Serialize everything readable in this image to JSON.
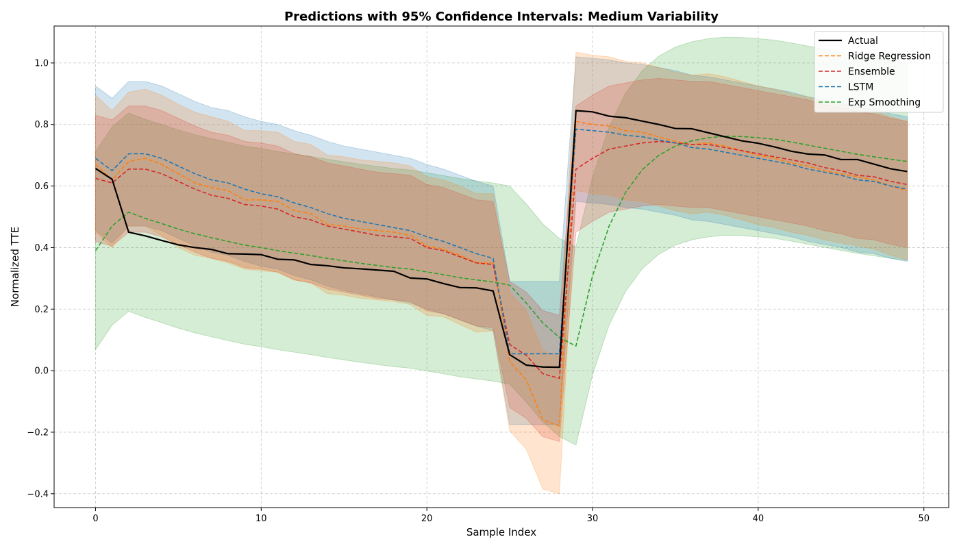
{
  "chart_data": {
    "type": "line",
    "title": "Predictions with 95% Confidence Intervals: Medium Variability",
    "xlabel": "Sample Index",
    "ylabel": "Normalized TTE",
    "xlim": [
      -2.5,
      51.5
    ],
    "ylim": [
      -0.445,
      1.12
    ],
    "x_ticks": [
      0,
      10,
      20,
      30,
      40,
      50
    ],
    "x_tick_labels": [
      "0",
      "10",
      "20",
      "30",
      "40",
      "50"
    ],
    "y_ticks": [
      -0.4,
      -0.2,
      0.0,
      0.2,
      0.4,
      0.6,
      0.8,
      1.0
    ],
    "y_tick_labels": [
      "−0.4",
      "−0.2",
      "0.0",
      "0.2",
      "0.4",
      "0.6",
      "0.8",
      "1.0"
    ],
    "grid": true,
    "legend_position": "top-right",
    "x": [
      0,
      1,
      2,
      3,
      4,
      5,
      6,
      7,
      8,
      9,
      10,
      11,
      12,
      13,
      14,
      15,
      16,
      17,
      18,
      19,
      20,
      21,
      22,
      23,
      24,
      25,
      26,
      27,
      28,
      29,
      30,
      31,
      32,
      33,
      34,
      35,
      36,
      37,
      38,
      39,
      40,
      41,
      42,
      43,
      44,
      45,
      46,
      47,
      48,
      49
    ],
    "series": [
      {
        "name": "Actual",
        "color": "#000000",
        "style": "solid",
        "values": [
          0.657,
          0.622,
          0.45,
          0.438,
          0.423,
          0.409,
          0.4,
          0.394,
          0.38,
          0.379,
          0.377,
          0.362,
          0.36,
          0.345,
          0.341,
          0.334,
          0.331,
          0.327,
          0.323,
          0.301,
          0.298,
          0.283,
          0.27,
          0.269,
          0.259,
          0.052,
          0.018,
          0.012,
          0.011,
          0.845,
          0.841,
          0.827,
          0.822,
          0.811,
          0.8,
          0.787,
          0.786,
          0.773,
          0.76,
          0.747,
          0.739,
          0.727,
          0.713,
          0.704,
          0.701,
          0.686,
          0.686,
          0.671,
          0.656,
          0.647
        ],
        "band": null
      },
      {
        "name": "Ridge Regression",
        "color": "#ff7f0e",
        "style": "dashed",
        "values": [
          0.67,
          0.62,
          0.68,
          0.69,
          0.67,
          0.64,
          0.61,
          0.595,
          0.585,
          0.555,
          0.555,
          0.55,
          0.52,
          0.51,
          0.475,
          0.47,
          0.46,
          0.455,
          0.45,
          0.44,
          0.405,
          0.395,
          0.375,
          0.35,
          0.35,
          0.03,
          -0.03,
          -0.16,
          -0.18,
          0.81,
          0.8,
          0.795,
          0.78,
          0.775,
          0.76,
          0.745,
          0.735,
          0.74,
          0.73,
          0.715,
          0.7,
          0.69,
          0.675,
          0.665,
          0.65,
          0.64,
          0.63,
          0.62,
          0.6,
          0.585
        ],
        "band": {
          "lower": [
            0.45,
            0.4,
            0.47,
            0.47,
            0.44,
            0.4,
            0.375,
            0.365,
            0.35,
            0.33,
            0.325,
            0.32,
            0.295,
            0.285,
            0.25,
            0.245,
            0.235,
            0.23,
            0.225,
            0.215,
            0.18,
            0.175,
            0.15,
            0.125,
            0.13,
            -0.195,
            -0.255,
            -0.385,
            -0.4,
            0.585,
            0.575,
            0.57,
            0.555,
            0.55,
            0.535,
            0.52,
            0.51,
            0.515,
            0.505,
            0.49,
            0.475,
            0.465,
            0.45,
            0.44,
            0.425,
            0.415,
            0.405,
            0.395,
            0.375,
            0.36
          ],
          "upper": [
            0.895,
            0.845,
            0.905,
            0.915,
            0.895,
            0.865,
            0.84,
            0.825,
            0.81,
            0.78,
            0.78,
            0.775,
            0.745,
            0.735,
            0.7,
            0.695,
            0.685,
            0.68,
            0.675,
            0.665,
            0.63,
            0.62,
            0.6,
            0.575,
            0.575,
            0.255,
            0.195,
            0.065,
            0.045,
            1.035,
            1.025,
            1.02,
            1.005,
            1.0,
            0.985,
            0.97,
            0.96,
            0.965,
            0.955,
            0.94,
            0.925,
            0.915,
            0.9,
            0.89,
            0.875,
            0.865,
            0.855,
            0.845,
            0.825,
            0.81
          ]
        }
      },
      {
        "name": "Ensemble",
        "color": "#d62728",
        "style": "dashed",
        "values": [
          0.625,
          0.61,
          0.655,
          0.655,
          0.64,
          0.615,
          0.59,
          0.57,
          0.56,
          0.54,
          0.535,
          0.525,
          0.5,
          0.49,
          0.47,
          0.46,
          0.45,
          0.44,
          0.435,
          0.43,
          0.4,
          0.39,
          0.37,
          0.35,
          0.345,
          0.085,
          0.05,
          -0.01,
          -0.025,
          0.655,
          0.69,
          0.72,
          0.73,
          0.74,
          0.745,
          0.74,
          0.735,
          0.735,
          0.725,
          0.715,
          0.705,
          0.695,
          0.685,
          0.675,
          0.66,
          0.65,
          0.635,
          0.63,
          0.615,
          0.605
        ],
        "band": {
          "lower": [
            0.42,
            0.405,
            0.45,
            0.45,
            0.435,
            0.41,
            0.385,
            0.365,
            0.355,
            0.335,
            0.33,
            0.32,
            0.295,
            0.285,
            0.265,
            0.255,
            0.245,
            0.235,
            0.23,
            0.225,
            0.195,
            0.185,
            0.165,
            0.145,
            0.14,
            -0.12,
            -0.155,
            -0.215,
            -0.23,
            0.45,
            0.485,
            0.515,
            0.525,
            0.535,
            0.54,
            0.535,
            0.53,
            0.53,
            0.52,
            0.51,
            0.5,
            0.49,
            0.48,
            0.47,
            0.455,
            0.445,
            0.43,
            0.425,
            0.41,
            0.4
          ],
          "upper": [
            0.83,
            0.815,
            0.86,
            0.86,
            0.845,
            0.82,
            0.795,
            0.775,
            0.765,
            0.745,
            0.74,
            0.73,
            0.705,
            0.695,
            0.675,
            0.665,
            0.655,
            0.645,
            0.64,
            0.635,
            0.605,
            0.595,
            0.575,
            0.555,
            0.55,
            0.29,
            0.255,
            0.195,
            0.18,
            0.86,
            0.895,
            0.925,
            0.935,
            0.945,
            0.95,
            0.945,
            0.94,
            0.94,
            0.93,
            0.92,
            0.91,
            0.9,
            0.89,
            0.88,
            0.865,
            0.855,
            0.84,
            0.835,
            0.82,
            0.81
          ]
        }
      },
      {
        "name": "LSTM",
        "color": "#1f77b4",
        "style": "dashed",
        "values": [
          0.69,
          0.65,
          0.705,
          0.705,
          0.69,
          0.665,
          0.64,
          0.62,
          0.61,
          0.59,
          0.575,
          0.565,
          0.545,
          0.53,
          0.51,
          0.495,
          0.485,
          0.475,
          0.465,
          0.455,
          0.435,
          0.42,
          0.4,
          0.38,
          0.365,
          0.055,
          0.055,
          0.055,
          0.055,
          0.785,
          0.78,
          0.775,
          0.765,
          0.76,
          0.75,
          0.74,
          0.725,
          0.72,
          0.71,
          0.7,
          0.69,
          0.68,
          0.67,
          0.655,
          0.645,
          0.635,
          0.62,
          0.615,
          0.6,
          0.59
        ],
        "band": {
          "lower": [
            0.455,
            0.415,
            0.47,
            0.47,
            0.455,
            0.43,
            0.405,
            0.385,
            0.375,
            0.355,
            0.34,
            0.33,
            0.31,
            0.295,
            0.275,
            0.26,
            0.25,
            0.24,
            0.23,
            0.22,
            0.2,
            0.185,
            0.165,
            0.145,
            0.13,
            -0.175,
            -0.175,
            -0.175,
            -0.175,
            0.55,
            0.545,
            0.54,
            0.53,
            0.525,
            0.515,
            0.505,
            0.49,
            0.485,
            0.475,
            0.465,
            0.455,
            0.445,
            0.435,
            0.42,
            0.41,
            0.4,
            0.385,
            0.38,
            0.365,
            0.355
          ],
          "upper": [
            0.925,
            0.885,
            0.94,
            0.94,
            0.925,
            0.9,
            0.875,
            0.855,
            0.845,
            0.825,
            0.81,
            0.8,
            0.78,
            0.765,
            0.745,
            0.73,
            0.72,
            0.71,
            0.7,
            0.69,
            0.67,
            0.655,
            0.635,
            0.615,
            0.6,
            0.29,
            0.29,
            0.29,
            0.29,
            1.02,
            1.015,
            1.01,
            1.0,
            0.995,
            0.985,
            0.975,
            0.96,
            0.955,
            0.945,
            0.935,
            0.925,
            0.915,
            0.905,
            0.89,
            0.88,
            0.87,
            0.855,
            0.85,
            0.835,
            0.825
          ]
        }
      },
      {
        "name": "Exp Smoothing",
        "color": "#2ca02c",
        "style": "dashed",
        "values": [
          0.39,
          0.47,
          0.515,
          0.495,
          0.478,
          0.46,
          0.445,
          0.432,
          0.42,
          0.408,
          0.4,
          0.39,
          0.382,
          0.374,
          0.365,
          0.357,
          0.349,
          0.342,
          0.335,
          0.33,
          0.321,
          0.312,
          0.302,
          0.295,
          0.288,
          0.278,
          0.22,
          0.155,
          0.108,
          0.08,
          0.308,
          0.47,
          0.58,
          0.653,
          0.7,
          0.73,
          0.747,
          0.757,
          0.762,
          0.761,
          0.757,
          0.752,
          0.743,
          0.733,
          0.723,
          0.713,
          0.703,
          0.695,
          0.687,
          0.68
        ],
        "band": {
          "lower": [
            0.068,
            0.148,
            0.193,
            0.173,
            0.156,
            0.138,
            0.123,
            0.11,
            0.098,
            0.086,
            0.078,
            0.068,
            0.06,
            0.052,
            0.043,
            0.035,
            0.027,
            0.02,
            0.013,
            0.008,
            -0.001,
            -0.01,
            -0.02,
            -0.027,
            -0.034,
            -0.044,
            -0.102,
            -0.167,
            -0.214,
            -0.242,
            -0.014,
            0.148,
            0.258,
            0.331,
            0.378,
            0.408,
            0.425,
            0.435,
            0.44,
            0.439,
            0.435,
            0.43,
            0.421,
            0.411,
            0.401,
            0.391,
            0.381,
            0.373,
            0.365,
            0.358
          ],
          "upper": [
            0.712,
            0.792,
            0.837,
            0.817,
            0.8,
            0.782,
            0.767,
            0.754,
            0.742,
            0.73,
            0.722,
            0.712,
            0.704,
            0.696,
            0.687,
            0.679,
            0.671,
            0.664,
            0.657,
            0.652,
            0.643,
            0.634,
            0.624,
            0.617,
            0.61,
            0.6,
            0.542,
            0.477,
            0.43,
            0.402,
            0.63,
            0.792,
            0.902,
            0.975,
            1.022,
            1.052,
            1.069,
            1.079,
            1.084,
            1.083,
            1.079,
            1.074,
            1.065,
            1.055,
            1.045,
            1.035,
            1.025,
            1.017,
            1.009,
            1.002
          ]
        }
      }
    ]
  }
}
